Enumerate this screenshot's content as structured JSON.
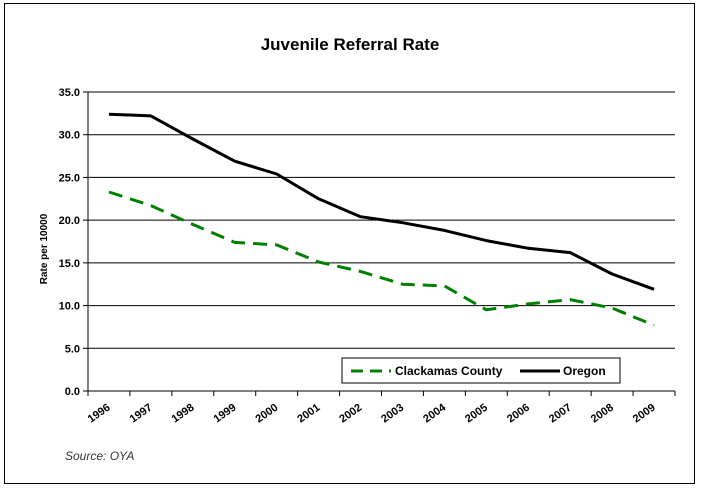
{
  "chart_data": {
    "type": "line",
    "title": "Juvenile Referral Rate",
    "ylabel": "Rate per 10000",
    "xlabel": "",
    "categories": [
      "1996",
      "1997",
      "1998",
      "1999",
      "2000",
      "2001",
      "2002",
      "2003",
      "2004",
      "2005",
      "2006",
      "2007",
      "2008",
      "2009"
    ],
    "ylim": [
      0,
      35
    ],
    "yticks": [
      "0.0",
      "5.0",
      "10.0",
      "15.0",
      "20.0",
      "25.0",
      "30.0",
      "35.0"
    ],
    "grid": "horizontal",
    "legend_position": "bottom-right inside",
    "series": [
      {
        "name": "Clackamas County",
        "color": "#008000",
        "style": "dashed",
        "values": [
          23.3,
          21.7,
          19.5,
          17.4,
          17.1,
          15.1,
          14.0,
          12.5,
          12.3,
          9.5,
          10.2,
          10.7,
          9.7,
          7.7
        ]
      },
      {
        "name": "Oregon",
        "color": "#000000",
        "style": "solid",
        "values": [
          32.4,
          32.2,
          29.5,
          26.9,
          25.4,
          22.5,
          20.4,
          19.7,
          18.8,
          17.6,
          16.7,
          16.2,
          13.7,
          11.9
        ]
      }
    ],
    "source": "Source:  OYA"
  }
}
